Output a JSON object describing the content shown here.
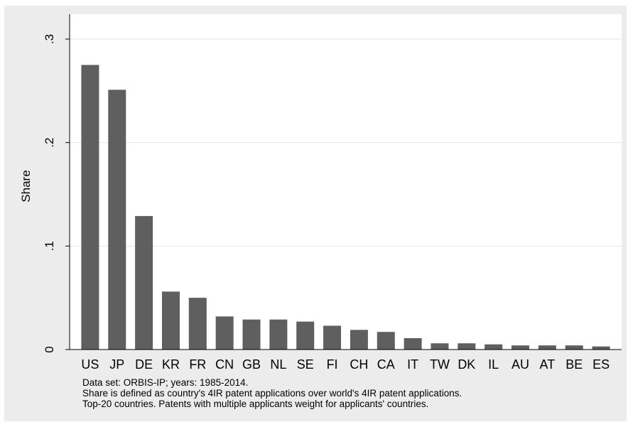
{
  "chart_data": {
    "type": "bar",
    "ylabel": "Share",
    "ylim": [
      0,
      0.3
    ],
    "yticks": [
      {
        "value": 0,
        "label": "0"
      },
      {
        "value": 0.1,
        "label": ".1"
      },
      {
        "value": 0.2,
        "label": ".2"
      },
      {
        "value": 0.3,
        "label": ".3"
      }
    ],
    "grid": true,
    "bar_color": "#5f5f5f",
    "categories": [
      "US",
      "JP",
      "DE",
      "KR",
      "FR",
      "CN",
      "GB",
      "NL",
      "SE",
      "FI",
      "CH",
      "CA",
      "IT",
      "TW",
      "DK",
      "IL",
      "AU",
      "AT",
      "BE",
      "ES"
    ],
    "values": [
      0.275,
      0.251,
      0.129,
      0.056,
      0.05,
      0.032,
      0.029,
      0.029,
      0.027,
      0.023,
      0.019,
      0.017,
      0.011,
      0.006,
      0.006,
      0.005,
      0.004,
      0.004,
      0.004,
      0.003
    ]
  },
  "notes": [
    "Data set: ORBIS-IP; years: 1985-2014.",
    "Share is defined as country's 4IR patent applications over world's 4IR patent applications.",
    "Top-20 countries. Patents with multiple applicants weight for applicants' countries."
  ]
}
